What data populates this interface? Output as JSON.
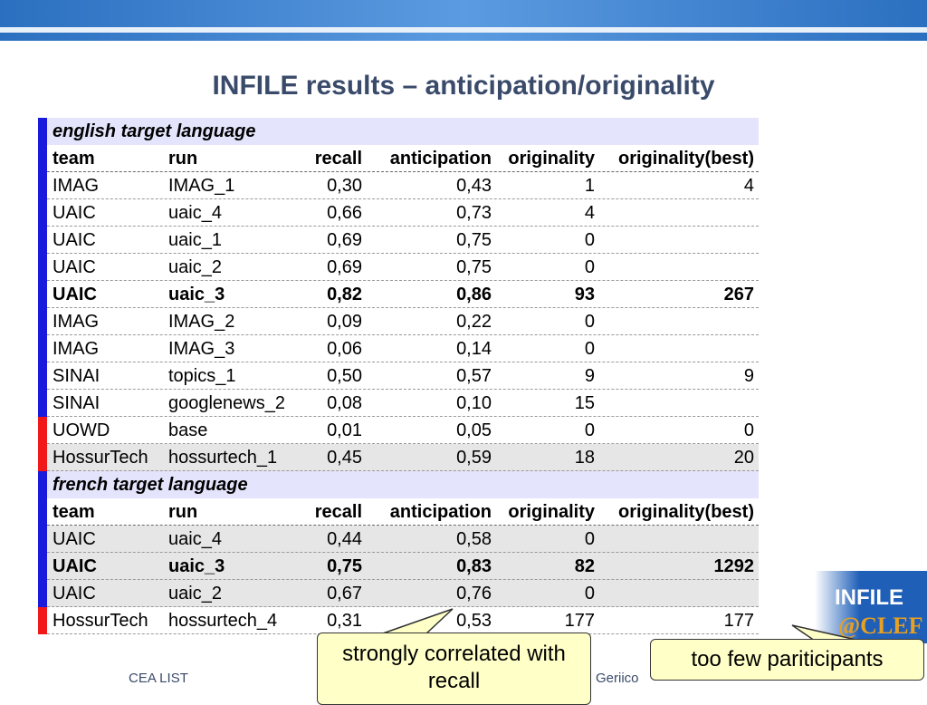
{
  "title": "INFILE results – anticipation/originality",
  "table": {
    "sections": [
      {
        "heading": "english target language",
        "columns": [
          "team",
          "run",
          "recall",
          "anticipation",
          "originality",
          "originality(best)"
        ],
        "rows": [
          {
            "cells": [
              "IMAG",
              "IMAG_1",
              "0,30",
              "0,43",
              "1",
              "4"
            ],
            "marker": "#1a1adc",
            "shade": false,
            "bold": false
          },
          {
            "cells": [
              "UAIC",
              "uaic_4",
              "0,66",
              "0,73",
              "4",
              null
            ],
            "marker": "#1a1adc",
            "shade": false,
            "bold": false
          },
          {
            "cells": [
              "UAIC",
              "uaic_1",
              "0,69",
              "0,75",
              "0",
              null
            ],
            "marker": "#1a1adc",
            "shade": false,
            "bold": false
          },
          {
            "cells": [
              "UAIC",
              "uaic_2",
              "0,69",
              "0,75",
              "0",
              null
            ],
            "marker": "#1a1adc",
            "shade": false,
            "bold": false
          },
          {
            "cells": [
              "UAIC",
              "uaic_3",
              "0,82",
              "0,86",
              "93",
              "267"
            ],
            "marker": "#1a1adc",
            "shade": false,
            "bold": true
          },
          {
            "cells": [
              "IMAG",
              "IMAG_2",
              "0,09",
              "0,22",
              "0",
              null
            ],
            "marker": "#1a1adc",
            "shade": false,
            "bold": false
          },
          {
            "cells": [
              "IMAG",
              "IMAG_3",
              "0,06",
              "0,14",
              "0",
              null
            ],
            "marker": "#1a1adc",
            "shade": false,
            "bold": false
          },
          {
            "cells": [
              "SINAI",
              "topics_1",
              "0,50",
              "0,57",
              "9",
              "9"
            ],
            "marker": "#1a1adc",
            "shade": false,
            "bold": false
          },
          {
            "cells": [
              "SINAI",
              "googlenews_2",
              "0,08",
              "0,10",
              "15",
              null
            ],
            "marker": "#1a1adc",
            "shade": false,
            "bold": false
          },
          {
            "cells": [
              "UOWD",
              "base",
              "0,01",
              "0,05",
              "0",
              "0"
            ],
            "marker": "#f01818",
            "shade": false,
            "bold": false
          },
          {
            "cells": [
              "HossurTech",
              "hossurtech_1",
              "0,45",
              "0,59",
              "18",
              "20"
            ],
            "marker": "#f01818",
            "shade": true,
            "bold": false
          }
        ]
      },
      {
        "heading": "french target language",
        "columns": [
          "team",
          "run",
          "recall",
          "anticipation",
          "originality",
          "originality(best)"
        ],
        "rows": [
          {
            "cells": [
              "UAIC",
              "uaic_4",
              "0,44",
              "0,58",
              "0",
              null
            ],
            "marker": "#1a1adc",
            "shade": true,
            "bold": false
          },
          {
            "cells": [
              "UAIC",
              "uaic_3",
              "0,75",
              "0,83",
              "82",
              "1292"
            ],
            "marker": "#1a1adc",
            "shade": true,
            "bold": true
          },
          {
            "cells": [
              "UAIC",
              "uaic_2",
              "0,67",
              "0,76",
              "0",
              null
            ],
            "marker": "#1a1adc",
            "shade": true,
            "bold": false
          },
          {
            "cells": [
              "HossurTech",
              "hossurtech_4",
              "0,31",
              "0,53",
              "177",
              "177"
            ],
            "marker": "#f01818",
            "shade": false,
            "bold": false
          }
        ]
      }
    ]
  },
  "callouts": [
    "strongly correlated with recall",
    "too few pariticipants"
  ],
  "footer": {
    "left": "CEA LIST",
    "center": "Geriico",
    "logo": "INFILE",
    "logo_sub": "@CLEF"
  }
}
